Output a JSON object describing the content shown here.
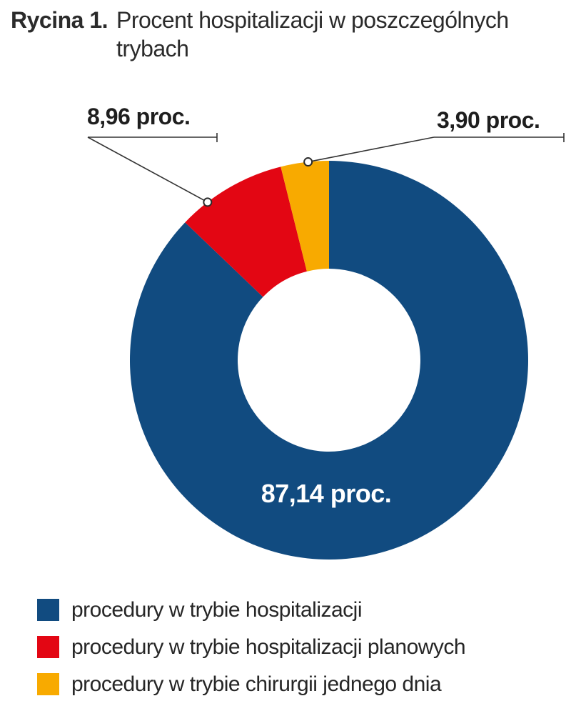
{
  "figure": {
    "label": "Rycina 1.",
    "title_line1": "Procent hospitalizacji w poszczególnych",
    "title_line2": "trybach"
  },
  "chart_data": {
    "type": "pie",
    "variant": "donut",
    "title": "Rycina 1. Procent hospitalizacji w poszczególnych trybach",
    "direction": "clockwise",
    "start_angle_deg": 0,
    "inner_radius_ratio": 0.46,
    "legend_position": "bottom-left",
    "unit": "proc.",
    "segments": [
      {
        "label": "procedury w trybie hospitalizacji",
        "value": 87.14,
        "value_label": "87,14 proc.",
        "color": "#114b80"
      },
      {
        "label": "procedury w trybie hospitalizacji planowych",
        "value": 8.96,
        "value_label": "8,96 proc.",
        "color": "#e30613"
      },
      {
        "label": "procedury w trybie chirurgii jednego dnia",
        "value": 3.9,
        "value_label": "3,90 proc.",
        "color": "#f8aa00"
      }
    ]
  },
  "colors": {
    "background": "#ffffff",
    "title_text": "#2b2b2b",
    "label_text": "#1e1e1e",
    "legend_text": "#262626",
    "leader_line": "#333333",
    "inner_hole": "#ffffff",
    "center_value_text": "#ffffff"
  }
}
